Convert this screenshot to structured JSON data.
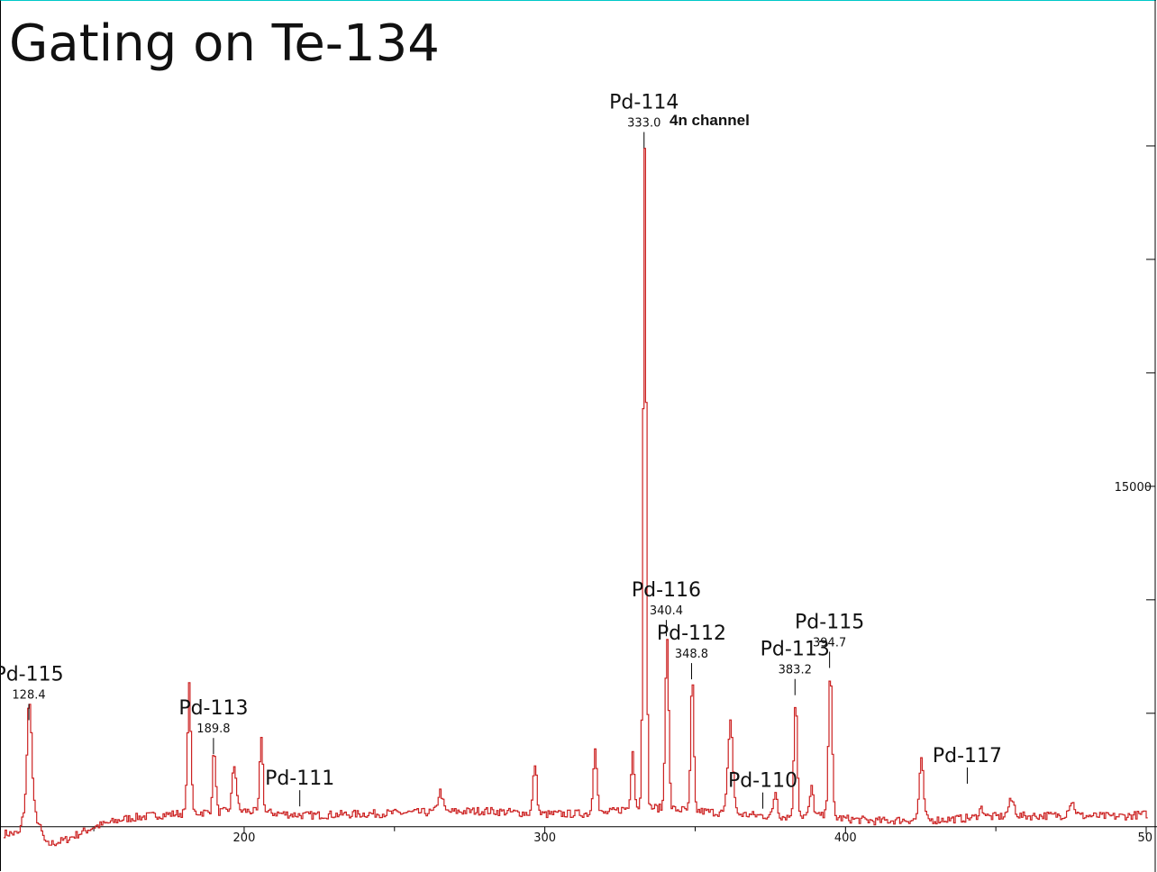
{
  "chart_data": {
    "type": "line",
    "title": "Gating on Te-134",
    "annotation": "4n channel",
    "xlabel": "",
    "ylabel": "",
    "xlim": [
      120,
      500
    ],
    "ylim": [
      -1200,
      35000
    ],
    "x_ticks": [
      200,
      300,
      400
    ],
    "x_tick_last_visible": "50",
    "y_ticks": [
      0,
      5000,
      10000,
      15000,
      20000,
      25000,
      30000
    ],
    "y_tick_labels": [
      {
        "value": 15000,
        "label": "15000"
      }
    ],
    "line_color": "#cc2222",
    "peaks": [
      {
        "isotope": "Pd-115",
        "energy": "128.4",
        "x": 128.4,
        "y": 4300
      },
      {
        "isotope": "Pd-113",
        "energy": "189.8",
        "x": 189.8,
        "y": 2800
      },
      {
        "isotope": "Pd-111",
        "energy": "",
        "x": 218.5,
        "y": 500
      },
      {
        "isotope": "Pd-114",
        "energy": "333.0",
        "x": 333.0,
        "y": 29500
      },
      {
        "isotope": "Pd-116",
        "energy": "340.4",
        "x": 340.4,
        "y": 8000
      },
      {
        "isotope": "Pd-112",
        "energy": "348.8",
        "x": 348.8,
        "y": 6100
      },
      {
        "isotope": "Pd-110",
        "energy": "",
        "x": 372.5,
        "y": 400
      },
      {
        "isotope": "Pd-113",
        "energy": "383.2",
        "x": 383.2,
        "y": 5400
      },
      {
        "isotope": "Pd-115",
        "energy": "394.7",
        "x": 394.7,
        "y": 6600
      },
      {
        "isotope": "Pd-117",
        "energy": "",
        "x": 440.5,
        "y": 1500
      }
    ],
    "spectrum": {
      "baseline": [
        [
          120,
          -300
        ],
        [
          125,
          -300
        ],
        [
          128,
          1500
        ],
        [
          131,
          300
        ],
        [
          134,
          -800
        ],
        [
          140,
          -600
        ],
        [
          150,
          0
        ],
        [
          160,
          350
        ],
        [
          170,
          500
        ],
        [
          180,
          600
        ],
        [
          200,
          700
        ],
        [
          220,
          500
        ],
        [
          250,
          600
        ],
        [
          280,
          700
        ],
        [
          300,
          550
        ],
        [
          320,
          600
        ],
        [
          330,
          900
        ],
        [
          340,
          800
        ],
        [
          350,
          700
        ],
        [
          360,
          600
        ],
        [
          370,
          500
        ],
        [
          380,
          450
        ],
        [
          390,
          500
        ],
        [
          400,
          350
        ],
        [
          410,
          250
        ],
        [
          420,
          300
        ],
        [
          430,
          300
        ],
        [
          450,
          450
        ],
        [
          470,
          500
        ],
        [
          490,
          450
        ],
        [
          500,
          550
        ]
      ],
      "peaks": [
        [
          128.4,
          4300,
          0.7
        ],
        [
          181.5,
          5600,
          0.55
        ],
        [
          189.8,
          2800,
          0.5
        ],
        [
          196.5,
          2000,
          0.7
        ],
        [
          205.5,
          3400,
          0.5
        ],
        [
          265,
          900,
          0.8
        ],
        [
          296.5,
          2200,
          0.6
        ],
        [
          316.5,
          3000,
          0.6
        ],
        [
          329.0,
          2600,
          0.5
        ],
        [
          333.0,
          29200,
          0.5
        ],
        [
          340.4,
          7700,
          0.55
        ],
        [
          348.8,
          5900,
          0.5
        ],
        [
          361.5,
          4100,
          0.8
        ],
        [
          376.5,
          1100,
          0.6
        ],
        [
          383.2,
          5200,
          0.55
        ],
        [
          388.5,
          1200,
          0.6
        ],
        [
          394.7,
          6400,
          0.6
        ],
        [
          425.0,
          2600,
          0.7
        ],
        [
          445,
          400,
          0.9
        ],
        [
          455,
          700,
          1.0
        ],
        [
          475,
          600,
          1.0
        ]
      ],
      "noise_amplitude": 180,
      "step": 0.5
    }
  }
}
